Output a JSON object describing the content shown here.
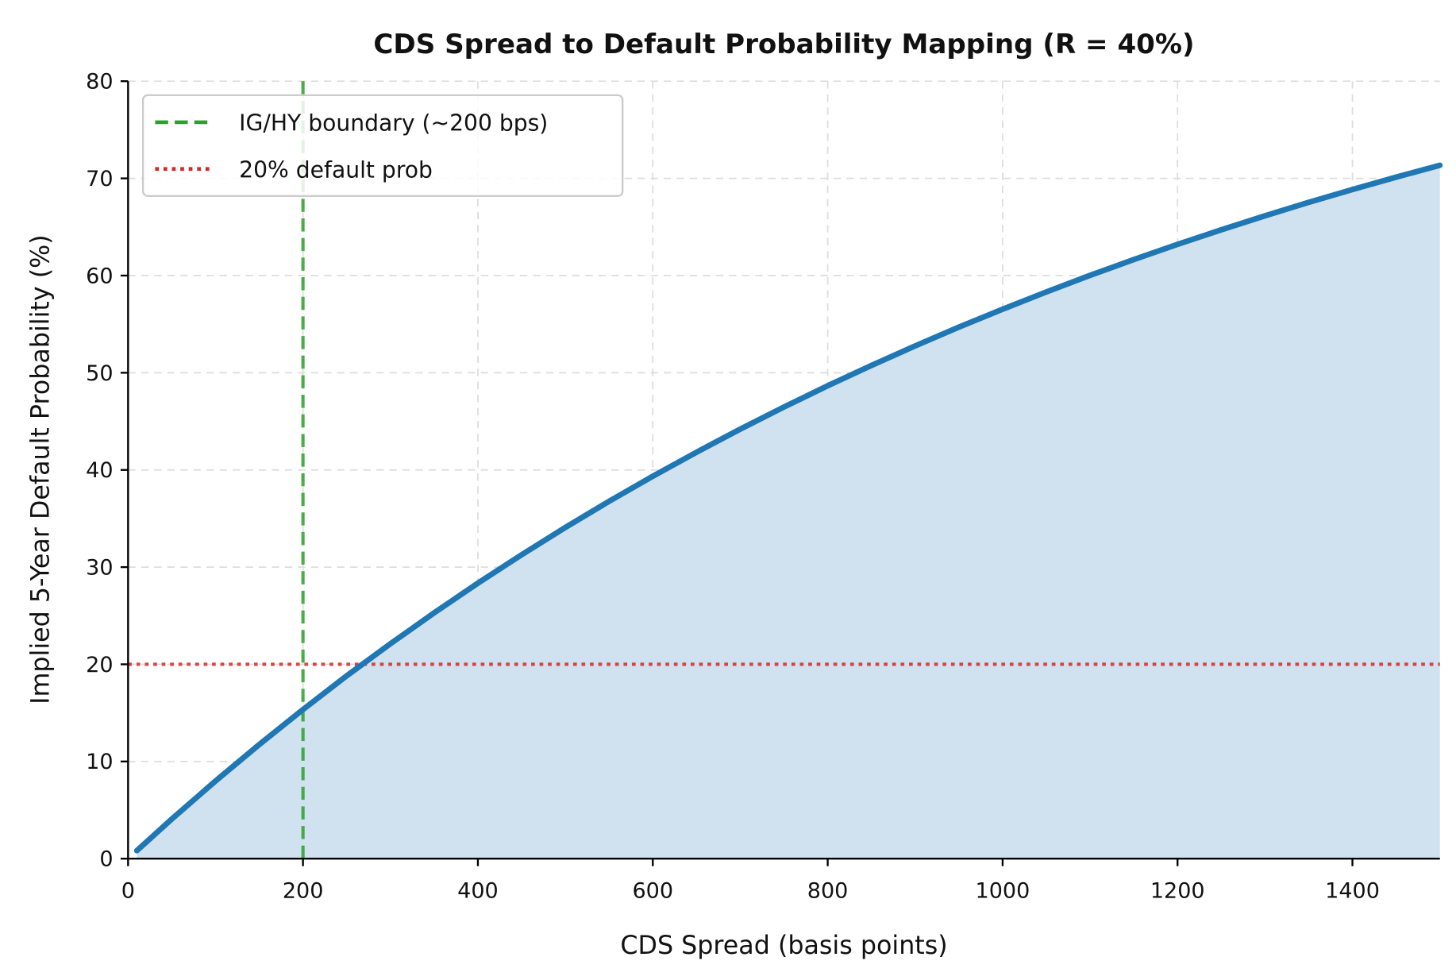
{
  "chart_data": {
    "type": "area",
    "title": "CDS Spread to Default Probability Mapping (R = 40%)",
    "xlabel": "CDS Spread (basis points)",
    "ylabel": "Implied 5-Year Default Probability (%)",
    "xlim": [
      0,
      1500
    ],
    "ylim": [
      0,
      80
    ],
    "xticks": [
      "0",
      "200",
      "400",
      "600",
      "800",
      "1000",
      "1200",
      "1400"
    ],
    "yticks": [
      "0",
      "10",
      "20",
      "30",
      "40",
      "50",
      "60",
      "70",
      "80"
    ],
    "grid": true,
    "legend_position": "top-left",
    "series": [
      {
        "color": "#1f77b4",
        "fill_color": "#d0e2ef",
        "x": [
          10,
          50,
          100,
          150,
          200,
          250,
          300,
          350,
          400,
          450,
          500,
          550,
          600,
          650,
          700,
          750,
          800,
          850,
          900,
          950,
          1000,
          1050,
          1100,
          1150,
          1200,
          1250,
          1300,
          1350,
          1400,
          1450,
          1500
        ],
        "y": [
          0.83,
          4.08,
          7.99,
          11.75,
          15.35,
          18.81,
          22.12,
          25.3,
          28.35,
          31.27,
          34.08,
          36.77,
          39.35,
          41.82,
          44.2,
          46.47,
          48.66,
          50.75,
          52.76,
          54.69,
          56.54,
          58.31,
          60.02,
          61.65,
          63.21,
          64.71,
          66.15,
          67.53,
          68.86,
          70.13,
          71.35
        ]
      }
    ],
    "reference_lines": [
      {
        "name": "IG/HY boundary (~200 bps)",
        "orientation": "vertical",
        "value": 200,
        "color": "#2ca02c",
        "style": "dashed"
      },
      {
        "name": "20% default prob",
        "orientation": "horizontal",
        "value": 20,
        "color": "#d62728",
        "style": "dotted"
      }
    ]
  }
}
